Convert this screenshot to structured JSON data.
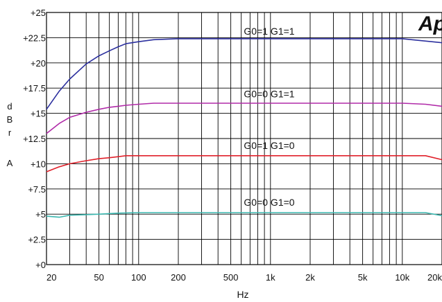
{
  "chart_data": {
    "type": "line",
    "title": "",
    "xlabel": "Hz",
    "ylabel": "dBrA",
    "x_scale": "log",
    "xlim": [
      20,
      20000
    ],
    "ylim": [
      0,
      25
    ],
    "grid": true,
    "y_ticks": [
      0,
      2.5,
      5,
      7.5,
      10,
      12.5,
      15,
      17.5,
      20,
      22.5,
      25
    ],
    "y_tick_labels": [
      "+0",
      "+2.5",
      "+5",
      "+7.5",
      "+10",
      "+12.5",
      "+15",
      "+17.5",
      "+20",
      "+22.5",
      "+25"
    ],
    "x_ticks": [
      20,
      50,
      100,
      200,
      500,
      1000,
      2000,
      5000,
      10000,
      20000
    ],
    "x_tick_labels": [
      "20",
      "50",
      "100",
      "200",
      "500",
      "1k",
      "2k",
      "5k",
      "10k",
      "20k"
    ],
    "logo_text": "Ap",
    "series": [
      {
        "name": "G0=1 G1=1",
        "color": "#2b2f9e",
        "x": [
          20,
          25,
          30,
          40,
          50,
          60,
          70,
          80,
          100,
          130,
          200,
          500,
          1000,
          5000,
          10000,
          20000
        ],
        "y": [
          15.4,
          17.2,
          18.4,
          19.9,
          20.7,
          21.2,
          21.6,
          21.9,
          22.1,
          22.3,
          22.4,
          22.4,
          22.4,
          22.4,
          22.4,
          22.0
        ]
      },
      {
        "name": "G0=0 G1=1",
        "color": "#b02aa8",
        "x": [
          20,
          25,
          30,
          40,
          50,
          60,
          70,
          80,
          100,
          130,
          200,
          500,
          1000,
          5000,
          10000,
          15000,
          20000
        ],
        "y": [
          13.0,
          14.0,
          14.6,
          15.1,
          15.4,
          15.6,
          15.7,
          15.8,
          15.9,
          16.0,
          16.0,
          16.0,
          16.0,
          16.0,
          16.0,
          15.9,
          15.7
        ]
      },
      {
        "name": "G0=1 G1=0",
        "color": "#e0202a",
        "x": [
          20,
          25,
          30,
          40,
          50,
          60,
          70,
          80,
          100,
          200,
          1000,
          5000,
          10000,
          15000,
          20000
        ],
        "y": [
          9.2,
          9.7,
          10.0,
          10.3,
          10.5,
          10.6,
          10.7,
          10.8,
          10.8,
          10.8,
          10.8,
          10.8,
          10.8,
          10.8,
          10.4
        ]
      },
      {
        "name": "G0=0 G1=0",
        "color": "#3bb8b0",
        "x": [
          20,
          25,
          30,
          40,
          50,
          70,
          100,
          200,
          1000,
          5000,
          10000,
          15000,
          20000
        ],
        "y": [
          4.8,
          4.7,
          4.9,
          4.95,
          5.0,
          5.1,
          5.15,
          5.15,
          5.15,
          5.15,
          5.15,
          5.15,
          4.85
        ]
      }
    ]
  }
}
